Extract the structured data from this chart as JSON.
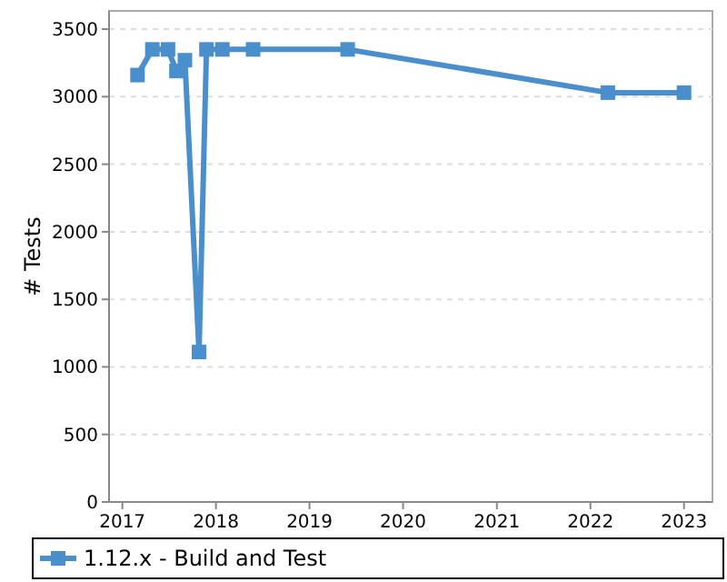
{
  "chart_data": {
    "type": "line",
    "ylabel": "# Tests",
    "x": [
      "2017-03-01",
      "2017-04-28",
      "2017-06-28",
      "2017-07-31",
      "2017-09-02",
      "2017-10-27",
      "2017-11-25",
      "2018-01-26",
      "2018-05-26",
      "2019-05-30",
      "2022-03-10",
      "2023-01-01"
    ],
    "series": [
      {
        "name": "1.12.x - Build and Test",
        "color": "#4a8ecb",
        "values": [
          3160,
          3350,
          3350,
          3190,
          3270,
          1110,
          3350,
          3350,
          3350,
          3350,
          3030,
          3030
        ]
      }
    ],
    "xlim": [
      "2016-11-10",
      "2023-04-22"
    ],
    "xticks": [
      "2017",
      "2018",
      "2019",
      "2020",
      "2021",
      "2022",
      "2023"
    ],
    "ylim": [
      0,
      3635
    ],
    "yticks": [
      0,
      500,
      1000,
      1500,
      2000,
      2500,
      3000,
      3500
    ],
    "grid": "y",
    "legend": "bottom",
    "marker": "square",
    "line_style": "solid"
  }
}
